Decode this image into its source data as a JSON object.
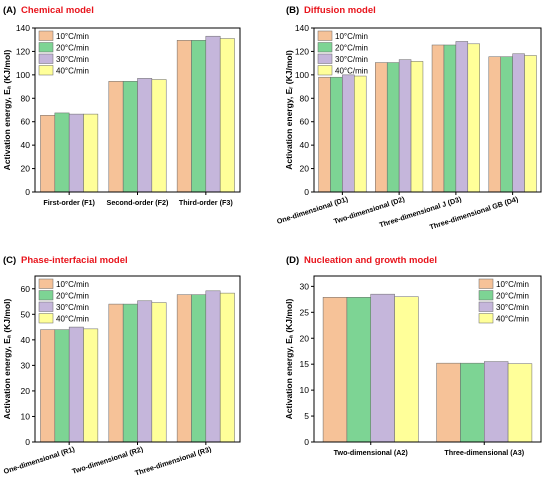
{
  "colors": {
    "title": "#e8141c",
    "series": [
      "#f6c298",
      "#7dd494",
      "#c5b6db",
      "#ffff99"
    ]
  },
  "chart_data": [
    {
      "type": "bar",
      "label": "(A)",
      "title": "Chemical model",
      "ylabel": "Activation energy, Eₐ (KJ/mol)",
      "ylim": [
        0,
        140
      ],
      "yticks": [
        0,
        20,
        40,
        60,
        80,
        100,
        120,
        140
      ],
      "categories": [
        "First-order (F1)",
        "Second-order (F2)",
        "Third-order (F3)"
      ],
      "series": [
        {
          "name": "10°C/min",
          "values": [
            65.5,
            94.5,
            129.5
          ]
        },
        {
          "name": " 20°C/min",
          "values": [
            67.5,
            94.5,
            129.5
          ]
        },
        {
          "name": "30°C/min",
          "values": [
            66.5,
            97,
            133
          ]
        },
        {
          "name": "40°C/min",
          "values": [
            66.5,
            96,
            131
          ]
        }
      ],
      "rotated_xlabels": false,
      "legend": "top-left"
    },
    {
      "type": "bar",
      "label": "(B)",
      "title": "Diffusion model",
      "ylabel": "Activation energy, Eᵣ (KJ/mol)",
      "ylim": [
        0,
        140
      ],
      "yticks": [
        0,
        20,
        40,
        60,
        80,
        100,
        120,
        140
      ],
      "categories": [
        "One-dimensional (D1)",
        "Two-dimensional (D2)",
        "Three-dimensional J (D3)",
        "Three-dimensional GB (D4)"
      ],
      "series": [
        {
          "name": "10°C/min",
          "values": [
            98,
            110.5,
            125.5,
            115.5
          ]
        },
        {
          "name": "20°C/min",
          "values": [
            98,
            110.5,
            125.5,
            115.5
          ]
        },
        {
          "name": "30°C/min",
          "values": [
            100,
            113,
            128.5,
            118
          ]
        },
        {
          "name": "40°C/min",
          "values": [
            99,
            111.5,
            126.5,
            116.5
          ]
        }
      ],
      "rotated_xlabels": true,
      "legend": "top-left"
    },
    {
      "type": "bar",
      "label": "(C)",
      "title": "Phase-interfacial model",
      "ylabel": "Activation energy, Eₐ (KJ/mol)",
      "ylim": [
        0,
        65
      ],
      "yticks": [
        0,
        10,
        20,
        30,
        40,
        50,
        60
      ],
      "categories": [
        "One-dimensional (R1)",
        "Two-dimensional (R2)",
        "Three-dimensional (R3)"
      ],
      "series": [
        {
          "name": "10°C/min",
          "values": [
            44,
            54,
            57.7
          ]
        },
        {
          "name": "20°C/min",
          "values": [
            44,
            54,
            57.7
          ]
        },
        {
          "name": "30°C/min",
          "values": [
            45,
            55.3,
            59.2
          ]
        },
        {
          "name": "40°C/min",
          "values": [
            44.3,
            54.6,
            58.3
          ]
        }
      ],
      "rotated_xlabels": true,
      "legend": "top-left"
    },
    {
      "type": "bar",
      "label": "(D)",
      "title": "Nucleation and growth model",
      "ylabel": "Activation energy, Eₐ (KJ/mol)",
      "ylim": [
        0,
        32
      ],
      "yticks": [
        0,
        5,
        10,
        15,
        20,
        25,
        30
      ],
      "categories": [
        "Two-dimensional (A2)",
        "Three-dimensional (A3)"
      ],
      "series": [
        {
          "name": "10°C/min",
          "values": [
            27.9,
            15.2
          ]
        },
        {
          "name": "20°C/min",
          "values": [
            27.9,
            15.2
          ]
        },
        {
          "name": "30°C/min",
          "values": [
            28.5,
            15.5
          ]
        },
        {
          "name": "40°C/min",
          "values": [
            28,
            15.1
          ]
        }
      ],
      "rotated_xlabels": false,
      "legend": "top-right"
    }
  ]
}
